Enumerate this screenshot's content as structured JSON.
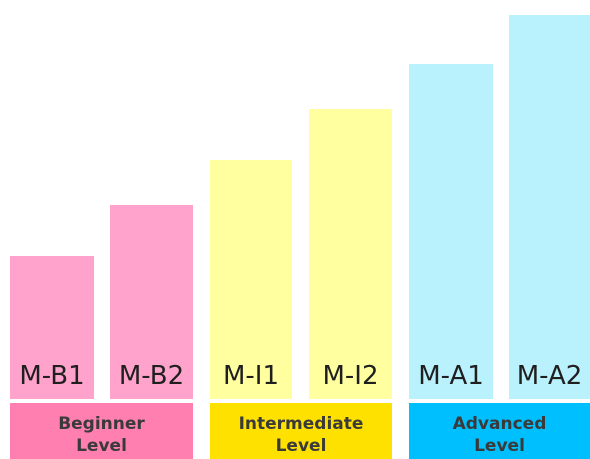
{
  "colors": {
    "beginner_bar": "#ffa3cc",
    "intermediate_bar": "#ffff9f",
    "advanced_bar": "#b9f2fd",
    "beginner_band": "#ff7fb0",
    "intermediate_band": "#ffe100",
    "advanced_band": "#00bfff"
  },
  "bars": [
    {
      "label": "M-B1",
      "level": "beginner"
    },
    {
      "label": "M-B2",
      "level": "beginner"
    },
    {
      "label": "M-I1",
      "level": "intermediate"
    },
    {
      "label": "M-I2",
      "level": "intermediate"
    },
    {
      "label": "M-A1",
      "level": "advanced"
    },
    {
      "label": "M-A2",
      "level": "advanced"
    }
  ],
  "levels": [
    {
      "line1": "Beginner",
      "line2": "Level"
    },
    {
      "line1": "Intermediate",
      "line2": "Level"
    },
    {
      "line1": "Advanced",
      "line2": "Level"
    }
  ]
}
